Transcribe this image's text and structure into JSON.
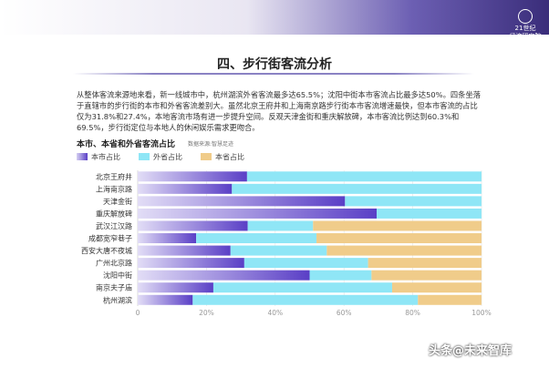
{
  "header": {
    "logo_line1": "21世纪",
    "logo_line2": "经济研究院"
  },
  "page": {
    "title": "四、步行街客流分析",
    "paragraph": "从整体客流来源地来看，新一线城市中，杭州湖滨外省客流最多达65.5%；沈阳中街本市客流占比最多达50%。四条坐落于直辖市的步行街的本市和外省客流差别大。虽然北京王府井和上海南京路步行街本市客流增速最快，但本市客流的占比仅为31.8%和27.4%，本地客流市场有进一步提升空间。反观天津金街和重庆解放碑，本市客流比例达到60.3%和69.5%，步行街定位与本地人的休闲娱乐需求更吻合。",
    "watermark": "头条@未来智库"
  },
  "chart_data": {
    "type": "bar",
    "orientation": "horizontal",
    "stacked": true,
    "title": "本市、本省和外省客流占比",
    "note": "数据来源:智慧足迹",
    "categories": [
      "北京王府井",
      "上海南京路",
      "天津金街",
      "重庆解放碑",
      "武汉江汉路",
      "成都宽窄巷子",
      "西安大唐不夜城",
      "广州北京路",
      "沈阳中街",
      "南京夫子庙",
      "杭州湖滨"
    ],
    "series": [
      {
        "name": "本市占比",
        "color": "#6a4fd0",
        "values": [
          31.8,
          27.4,
          60.3,
          69.5,
          32,
          17,
          27,
          31,
          50,
          22,
          16
        ]
      },
      {
        "name": "外省占比",
        "color": "#8fe6f6",
        "values": [
          68.2,
          72.6,
          39.7,
          30.5,
          19,
          35,
          28,
          36,
          18,
          52,
          65.5
        ]
      },
      {
        "name": "本省占比",
        "color": "#f0cc8a",
        "values": [
          0,
          0,
          0,
          0,
          49,
          48,
          45,
          33,
          32,
          26,
          18.5
        ]
      }
    ],
    "xlim": [
      0,
      100
    ],
    "xticks": [
      "0",
      "20%",
      "40%",
      "60%",
      "80%",
      "100%"
    ],
    "legend": [
      {
        "label": "本市占比",
        "color": "#6a4fd0"
      },
      {
        "label": "外省占比",
        "color": "#8fe6f6"
      },
      {
        "label": "本省占比",
        "color": "#f0cc8a"
      }
    ],
    "legend_position": "top-left",
    "grid": true
  }
}
